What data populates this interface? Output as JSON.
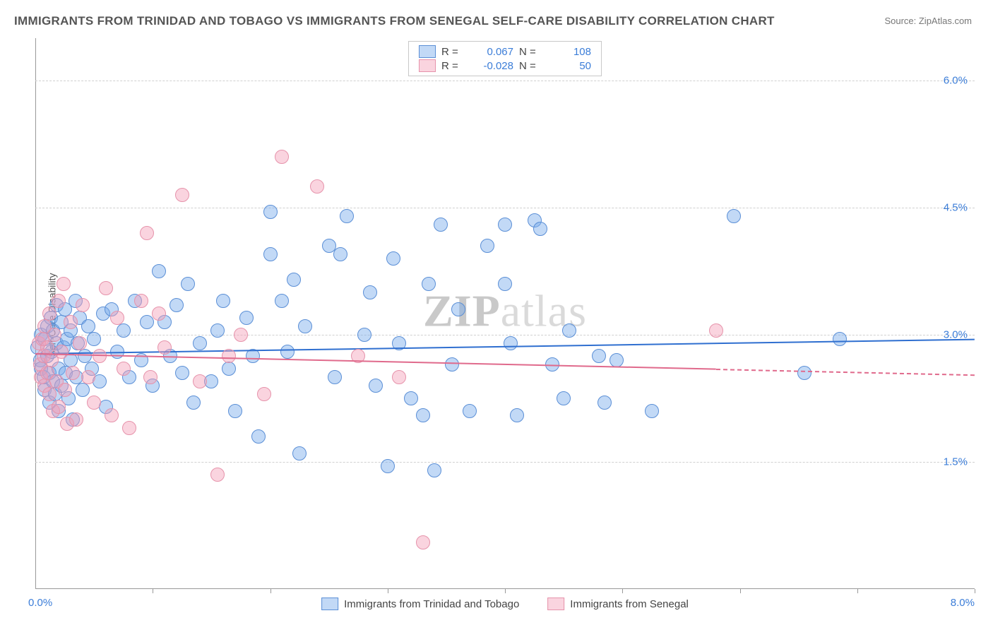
{
  "title": "IMMIGRANTS FROM TRINIDAD AND TOBAGO VS IMMIGRANTS FROM SENEGAL SELF-CARE DISABILITY CORRELATION CHART",
  "source": "Source: ZipAtlas.com",
  "ylabel": "Self-Care Disability",
  "watermark_a": "ZIP",
  "watermark_b": "atlas",
  "chart": {
    "type": "scatter",
    "xlim": [
      0.0,
      8.0
    ],
    "ylim": [
      0.0,
      6.5
    ],
    "yticks": [
      1.5,
      3.0,
      4.5,
      6.0
    ],
    "ytick_labels": [
      "1.5%",
      "3.0%",
      "4.5%",
      "6.0%"
    ],
    "xtick_marks": [
      1.0,
      2.0,
      3.0,
      4.0,
      5.0,
      6.0,
      7.0,
      8.0
    ],
    "xlim_left_label": "0.0%",
    "xlim_right_label": "8.0%",
    "marker_radius": 10,
    "background": "#ffffff",
    "grid_color": "#d0d0d0",
    "series": [
      {
        "id": "trinidad",
        "label": "Immigrants from Trinidad and Tobago",
        "fill": "rgba(120,170,235,0.45)",
        "stroke": "#5b8fd6",
        "line_color": "#2f6fd0",
        "R": "0.067",
        "N": "108",
        "reg_y_start": 2.78,
        "reg_y_end": 2.95,
        "reg_x_start": 0.0,
        "reg_x_end": 8.0,
        "reg_dash_from": 8.0,
        "points": [
          [
            0.02,
            2.85
          ],
          [
            0.04,
            2.7
          ],
          [
            0.05,
            2.6
          ],
          [
            0.05,
            3.0
          ],
          [
            0.07,
            2.5
          ],
          [
            0.08,
            2.95
          ],
          [
            0.08,
            2.35
          ],
          [
            0.1,
            2.75
          ],
          [
            0.1,
            3.1
          ],
          [
            0.12,
            2.55
          ],
          [
            0.12,
            2.2
          ],
          [
            0.13,
            3.2
          ],
          [
            0.14,
            2.8
          ],
          [
            0.15,
            2.45
          ],
          [
            0.15,
            3.05
          ],
          [
            0.17,
            2.3
          ],
          [
            0.18,
            2.9
          ],
          [
            0.18,
            3.35
          ],
          [
            0.2,
            2.6
          ],
          [
            0.2,
            2.1
          ],
          [
            0.22,
            3.15
          ],
          [
            0.22,
            2.4
          ],
          [
            0.24,
            2.85
          ],
          [
            0.25,
            3.3
          ],
          [
            0.26,
            2.55
          ],
          [
            0.27,
            2.95
          ],
          [
            0.28,
            2.25
          ],
          [
            0.3,
            3.05
          ],
          [
            0.3,
            2.7
          ],
          [
            0.32,
            2.0
          ],
          [
            0.34,
            3.4
          ],
          [
            0.35,
            2.5
          ],
          [
            0.36,
            2.9
          ],
          [
            0.38,
            3.2
          ],
          [
            0.4,
            2.35
          ],
          [
            0.42,
            2.75
          ],
          [
            0.45,
            3.1
          ],
          [
            0.48,
            2.6
          ],
          [
            0.5,
            2.95
          ],
          [
            0.55,
            2.45
          ],
          [
            0.58,
            3.25
          ],
          [
            0.6,
            2.15
          ],
          [
            0.65,
            3.3
          ],
          [
            0.7,
            2.8
          ],
          [
            0.75,
            3.05
          ],
          [
            0.8,
            2.5
          ],
          [
            0.85,
            3.4
          ],
          [
            0.9,
            2.7
          ],
          [
            0.95,
            3.15
          ],
          [
            1.0,
            2.4
          ],
          [
            1.05,
            3.75
          ],
          [
            1.1,
            3.15
          ],
          [
            1.15,
            2.75
          ],
          [
            1.2,
            3.35
          ],
          [
            1.25,
            2.55
          ],
          [
            1.3,
            3.6
          ],
          [
            1.35,
            2.2
          ],
          [
            1.4,
            2.9
          ],
          [
            1.5,
            2.45
          ],
          [
            1.55,
            3.05
          ],
          [
            1.6,
            3.4
          ],
          [
            1.65,
            2.6
          ],
          [
            1.7,
            2.1
          ],
          [
            1.8,
            3.2
          ],
          [
            1.85,
            2.75
          ],
          [
            1.9,
            1.8
          ],
          [
            2.0,
            4.45
          ],
          [
            2.0,
            3.95
          ],
          [
            2.1,
            3.4
          ],
          [
            2.15,
            2.8
          ],
          [
            2.2,
            3.65
          ],
          [
            2.25,
            1.6
          ],
          [
            2.3,
            3.1
          ],
          [
            2.5,
            4.05
          ],
          [
            2.55,
            2.5
          ],
          [
            2.6,
            3.95
          ],
          [
            2.65,
            4.4
          ],
          [
            2.8,
            3.0
          ],
          [
            2.85,
            3.5
          ],
          [
            2.9,
            2.4
          ],
          [
            3.0,
            1.45
          ],
          [
            3.05,
            3.9
          ],
          [
            3.1,
            2.9
          ],
          [
            3.2,
            2.25
          ],
          [
            3.3,
            2.05
          ],
          [
            3.35,
            3.6
          ],
          [
            3.4,
            1.4
          ],
          [
            3.45,
            4.3
          ],
          [
            3.55,
            2.65
          ],
          [
            3.6,
            3.3
          ],
          [
            3.7,
            2.1
          ],
          [
            3.85,
            4.05
          ],
          [
            4.0,
            4.3
          ],
          [
            4.05,
            2.9
          ],
          [
            4.1,
            2.05
          ],
          [
            4.25,
            4.35
          ],
          [
            4.3,
            4.25
          ],
          [
            4.4,
            2.65
          ],
          [
            4.5,
            2.25
          ],
          [
            4.55,
            3.05
          ],
          [
            4.8,
            2.75
          ],
          [
            4.85,
            2.2
          ],
          [
            4.95,
            2.7
          ],
          [
            5.25,
            2.1
          ],
          [
            5.95,
            4.4
          ],
          [
            6.55,
            2.55
          ],
          [
            6.85,
            2.95
          ],
          [
            4.0,
            3.6
          ]
        ]
      },
      {
        "id": "senegal",
        "label": "Immigrants from Senegal",
        "fill": "rgba(245,160,185,0.45)",
        "stroke": "#e693ab",
        "line_color": "#e06a8c",
        "R": "-0.028",
        "N": "50",
        "reg_y_start": 2.78,
        "reg_y_end": 2.6,
        "reg_x_start": 0.0,
        "reg_x_end": 5.8,
        "reg_dash_from": 5.8,
        "points": [
          [
            0.03,
            2.9
          ],
          [
            0.04,
            2.65
          ],
          [
            0.05,
            2.5
          ],
          [
            0.06,
            2.95
          ],
          [
            0.07,
            2.75
          ],
          [
            0.08,
            3.1
          ],
          [
            0.08,
            2.4
          ],
          [
            0.1,
            2.85
          ],
          [
            0.1,
            2.55
          ],
          [
            0.12,
            3.25
          ],
          [
            0.12,
            2.3
          ],
          [
            0.14,
            2.7
          ],
          [
            0.15,
            2.1
          ],
          [
            0.16,
            3.0
          ],
          [
            0.18,
            2.45
          ],
          [
            0.2,
            3.4
          ],
          [
            0.2,
            2.15
          ],
          [
            0.22,
            2.8
          ],
          [
            0.24,
            3.6
          ],
          [
            0.25,
            2.35
          ],
          [
            0.27,
            1.95
          ],
          [
            0.3,
            3.15
          ],
          [
            0.32,
            2.55
          ],
          [
            0.35,
            2.0
          ],
          [
            0.38,
            2.9
          ],
          [
            0.4,
            3.35
          ],
          [
            0.45,
            2.5
          ],
          [
            0.5,
            2.2
          ],
          [
            0.55,
            2.75
          ],
          [
            0.6,
            3.55
          ],
          [
            0.65,
            2.05
          ],
          [
            0.7,
            3.2
          ],
          [
            0.75,
            2.6
          ],
          [
            0.8,
            1.9
          ],
          [
            0.9,
            3.4
          ],
          [
            0.95,
            4.2
          ],
          [
            0.98,
            2.5
          ],
          [
            1.05,
            3.25
          ],
          [
            1.1,
            2.85
          ],
          [
            1.25,
            4.65
          ],
          [
            1.4,
            2.45
          ],
          [
            1.55,
            1.35
          ],
          [
            1.65,
            2.75
          ],
          [
            1.75,
            3.0
          ],
          [
            1.95,
            2.3
          ],
          [
            2.1,
            5.1
          ],
          [
            2.4,
            4.75
          ],
          [
            2.75,
            2.75
          ],
          [
            3.1,
            2.5
          ],
          [
            5.8,
            3.05
          ]
        ]
      }
    ]
  },
  "legend_bottom": [
    {
      "series": "trinidad",
      "label": "Immigrants from Trinidad and Tobago"
    },
    {
      "series": "senegal",
      "label": "Immigrants from Senegal"
    }
  ]
}
